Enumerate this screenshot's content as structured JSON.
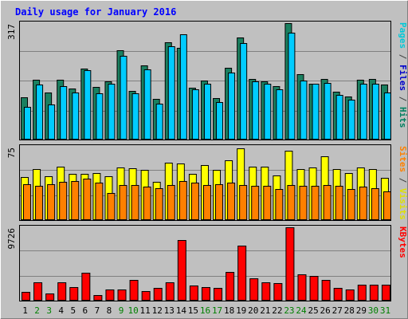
{
  "chart_data": {
    "type": "bar",
    "title": "Daily usage for January 2016",
    "categories": [
      "1",
      "2",
      "3",
      "4",
      "5",
      "6",
      "7",
      "8",
      "9",
      "10",
      "11",
      "12",
      "13",
      "14",
      "15",
      "16",
      "17",
      "18",
      "19",
      "20",
      "21",
      "22",
      "23",
      "24",
      "25",
      "26",
      "27",
      "28",
      "29",
      "30",
      "31"
    ],
    "weekend_days": [
      "2",
      "3",
      "9",
      "10",
      "16",
      "17",
      "23",
      "24",
      "30",
      "31"
    ],
    "panels": [
      {
        "name": "hits-files-pages",
        "max_label": "317",
        "ylim": [
          0,
          317
        ],
        "right_label": [
          {
            "text": "Pages",
            "color": "#00c8d8"
          },
          {
            "text": " / ",
            "color": "#404040"
          },
          {
            "text": "Files",
            "color": "#0000cc"
          },
          {
            "text": " / ",
            "color": "#404040"
          },
          {
            "text": "Hits",
            "color": "#008060"
          }
        ],
        "series": [
          {
            "name": "Hits",
            "color": "#1a8060",
            "values": [
              114,
              163,
              128,
              163,
              140,
              193,
              144,
              158,
              244,
              133,
              203,
              110,
              265,
              250,
              142,
              160,
              113,
              195,
              277,
              166,
              158,
              146,
              317,
              177,
              153,
              166,
              131,
              117,
              162,
              166,
              150
            ]
          },
          {
            "name": "Files",
            "color": "#0000cc",
            "values": [
              0,
              0,
              0,
              0,
              0,
              0,
              0,
              0,
              0,
              0,
              0,
              0,
              0,
              0,
              0,
              0,
              0,
              0,
              0,
              0,
              0,
              0,
              0,
              0,
              0,
              0,
              0,
              0,
              0,
              0,
              0
            ]
          },
          {
            "name": "Pages",
            "color": "#00ccff",
            "values": [
              88,
              149,
              96,
              146,
              129,
              189,
              127,
              151,
              227,
              125,
              192,
              98,
              254,
              287,
              136,
              151,
              103,
              183,
              263,
              158,
              152,
              137,
              292,
              160,
              152,
              154,
              121,
              108,
              151,
              152,
              129
            ]
          }
        ]
      },
      {
        "name": "visits-sites",
        "max_label": "75",
        "ylim": [
          0,
          75
        ],
        "right_label": [
          {
            "text": "Sites",
            "color": "#ff8000"
          },
          {
            "text": " / ",
            "color": "#404040"
          },
          {
            "text": "Visits",
            "color": "#e0e000"
          }
        ],
        "series": [
          {
            "name": "Visits",
            "color": "#ffff00",
            "values": [
              44,
              52,
              45,
              55,
              47,
              47,
              48,
              45,
              54,
              53,
              51,
              39,
              59,
              58,
              47,
              56,
              51,
              61,
              73,
              55,
              55,
              46,
              71,
              52,
              54,
              65,
              52,
              48,
              54,
              52,
              43
            ]
          },
          {
            "name": "Sites",
            "color": "#ff8000",
            "values": [
              37,
              35,
              37,
              39,
              40,
              42,
              38,
              28,
              36,
              36,
              34,
              33,
              36,
              40,
              38,
              36,
              37,
              38,
              36,
              35,
              35,
              32,
              36,
              35,
              35,
              36,
              35,
              32,
              34,
              33,
              29
            ]
          }
        ]
      },
      {
        "name": "kbytes",
        "max_label": "9726",
        "ylim": [
          0,
          9726
        ],
        "right_label": [
          {
            "text": "KBytes",
            "color": "#ff0000"
          }
        ],
        "series": [
          {
            "name": "KBytes",
            "color": "#ff0000",
            "values": [
              1200,
              2400,
              900,
              2400,
              1800,
              3700,
              700,
              1500,
              1500,
              2800,
              1300,
              1700,
              2400,
              8000,
              2000,
              1800,
              1700,
              3800,
              7300,
              3000,
              2400,
              2300,
              9726,
              3500,
              3300,
              2800,
              1700,
              1500,
              2100,
              2100,
              2100
            ]
          }
        ]
      }
    ]
  }
}
